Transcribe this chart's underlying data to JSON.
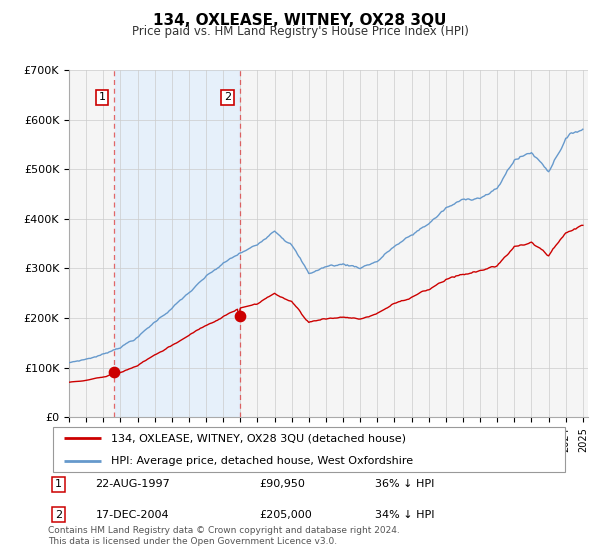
{
  "title": "134, OXLEASE, WITNEY, OX28 3QU",
  "subtitle": "Price paid vs. HM Land Registry's House Price Index (HPI)",
  "legend_line1": "134, OXLEASE, WITNEY, OX28 3QU (detached house)",
  "legend_line2": "HPI: Average price, detached house, West Oxfordshire",
  "transaction1_date": "22-AUG-1997",
  "transaction1_price": 90950,
  "transaction1_note": "36% ↓ HPI",
  "transaction2_date": "17-DEC-2004",
  "transaction2_price": 205000,
  "transaction2_note": "34% ↓ HPI",
  "footer": "Contains HM Land Registry data © Crown copyright and database right 2024.\nThis data is licensed under the Open Government Licence v3.0.",
  "price_color": "#cc0000",
  "hpi_color": "#6699cc",
  "background_color": "#f5f5f5",
  "shaded_color": "#ddeeff",
  "grid_color": "#cccccc",
  "ylim": [
    0,
    700000
  ],
  "yticks": [
    0,
    100000,
    200000,
    300000,
    400000,
    500000,
    600000,
    700000
  ],
  "ytick_labels": [
    "£0",
    "£100K",
    "£200K",
    "£300K",
    "£400K",
    "£500K",
    "£600K",
    "£700K"
  ]
}
